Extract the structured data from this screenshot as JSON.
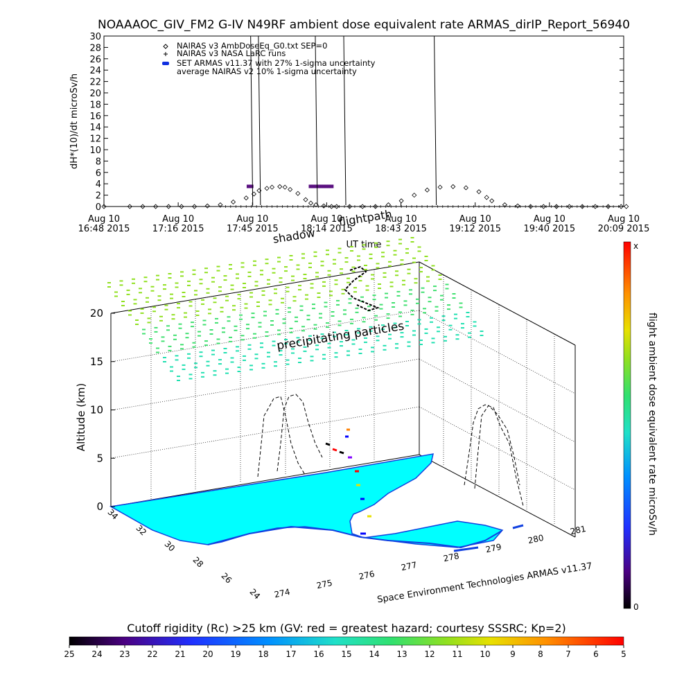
{
  "header": {
    "title": "NOAAAOC_GIV_FM2 G-IV   N49RF   ambient dose equivalent rate ARMAS_dirIP_Report_56940"
  },
  "chart_data": [
    {
      "type": "line",
      "ylabel": "dH*(10)/dt microSv/h",
      "xlabel": "UT time",
      "ylim": [
        0,
        30
      ],
      "yticks": [
        "0",
        "2",
        "4",
        "6",
        "8",
        "10",
        "12",
        "14",
        "16",
        "18",
        "20",
        "22",
        "24",
        "26",
        "28",
        "30"
      ],
      "xticks": [
        {
          "top": "Aug 10",
          "bottom": "16:48 2015"
        },
        {
          "top": "Aug 10",
          "bottom": "17:16 2015"
        },
        {
          "top": "Aug 10",
          "bottom": "17:45 2015"
        },
        {
          "top": "Aug 10",
          "bottom": "18:14 2015"
        },
        {
          "top": "Aug 10",
          "bottom": "18:43 2015"
        },
        {
          "top": "Aug 10",
          "bottom": "19:12 2015"
        },
        {
          "top": "Aug 10",
          "bottom": "19:40 2015"
        },
        {
          "top": "Aug 10",
          "bottom": "20:09 2015"
        }
      ],
      "legend": [
        {
          "marker": "diamond",
          "label": "NAIRAS v3 AmbDoseEq_G0.txt SEP=0"
        },
        {
          "marker": "plus",
          "label": "NAIRAS v3 NASA LaRC runs"
        },
        {
          "marker": "blue-dash",
          "label": "SET ARMAS v11.37 with 27% 1-sigma uncertainty"
        },
        {
          "marker": "none",
          "label": "average NAIRAS v2 10% 1-sigma uncertainty"
        }
      ],
      "series": [
        {
          "name": "NAIRAS v3 AmbDoseEq_G0.txt SEP=0",
          "x_minutes": [
            0,
            10,
            15,
            20,
            25,
            30,
            35,
            40,
            45,
            50,
            55,
            58,
            60,
            63,
            65,
            68,
            70,
            72,
            75,
            78,
            80,
            82,
            85,
            88,
            90,
            95,
            100,
            105,
            110,
            115,
            120,
            125,
            130,
            135,
            140,
            145,
            148,
            150,
            155,
            160,
            165,
            170,
            175,
            180,
            185,
            190,
            195,
            200,
            202
          ],
          "values": [
            0,
            0,
            0,
            0,
            0,
            0,
            0,
            0.1,
            0.3,
            0.8,
            1.5,
            2.2,
            2.8,
            3.2,
            3.4,
            3.5,
            3.4,
            3.0,
            2.3,
            1.2,
            0.6,
            0.3,
            0.1,
            0,
            0,
            0,
            0,
            0,
            0.3,
            1.0,
            2.0,
            2.9,
            3.4,
            3.5,
            3.3,
            2.6,
            1.6,
            1.0,
            0.3,
            0.1,
            0,
            0,
            0,
            0,
            0,
            0,
            0,
            0,
            0
          ]
        },
        {
          "name": "SET ARMAS v11.37 with 27% 1-sigma uncertainty",
          "x_minutes": [
            56,
            57,
            80,
            81,
            82,
            83,
            84,
            85,
            86,
            87,
            88
          ],
          "values": [
            3.6,
            3.6,
            3.6,
            3.6,
            3.6,
            3.6,
            3.6,
            3.6,
            3.6,
            3.6,
            3.6
          ]
        }
      ]
    },
    {
      "type": "3d-map",
      "zlabel": "Altitude (km)",
      "zticks": [
        "0",
        "5",
        "10",
        "15",
        "20"
      ],
      "lat_ticks": [
        "34",
        "32",
        "30",
        "28",
        "26",
        "24"
      ],
      "lon_ticks": [
        "274",
        "275",
        "276",
        "277",
        "278",
        "279",
        "280",
        "281"
      ],
      "annotations": [
        "shadow",
        "flightpath",
        "precipitating particles"
      ],
      "credit": "Space Environment Technologies ARMAS v11.37",
      "colorbar": {
        "label": "flight ambient dose equivalent rate microSv/h",
        "top": "x",
        "bottom": "0"
      }
    },
    {
      "type": "colorbar",
      "title": "Cutoff rigidity (Rc) >25 km (GV: red = greatest hazard; courtesy SSSRC; Kp=2)",
      "ticks": [
        "25",
        "24",
        "23",
        "22",
        "21",
        "20",
        "19",
        "18",
        "17",
        "16",
        "15",
        "14",
        "13",
        "12",
        "11",
        "10",
        "9",
        "8",
        "7",
        "6",
        "5"
      ]
    }
  ]
}
